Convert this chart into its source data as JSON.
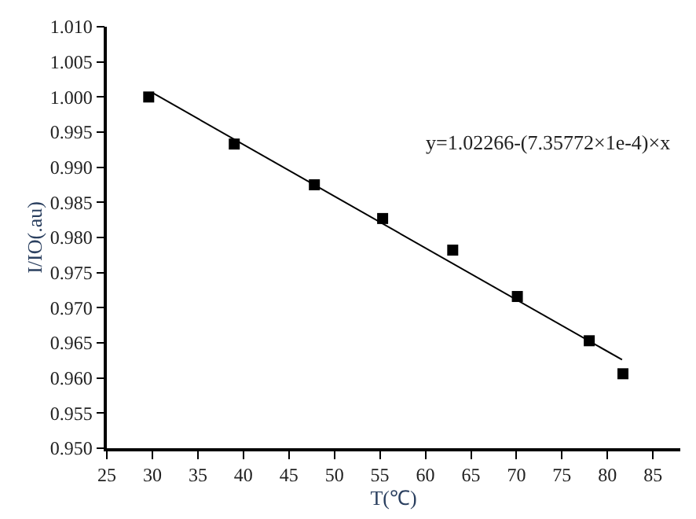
{
  "chart_data": {
    "type": "scatter",
    "xlabel": "T(℃)",
    "ylabel": "I/IO(.au)",
    "annotations": [
      "y=1.02266-(7.35772×1e-4)×x"
    ],
    "x": [
      29.6,
      39.0,
      47.8,
      55.3,
      63.0,
      70.1,
      78.0,
      81.7
    ],
    "series": [
      {
        "color": "#000000",
        "values": [
          1.0,
          0.9933,
          0.9875,
          0.9827,
          0.9782,
          0.9716,
          0.9653,
          0.9606
        ]
      },
      {
        "type": "line",
        "color": "#000000",
        "marker": "none",
        "x": [
          30,
          81.6
        ],
        "values": [
          1.0006,
          0.9626
        ]
      }
    ],
    "xlim": [
      25,
      88
    ],
    "xticks": [
      25,
      30,
      35,
      40,
      45,
      50,
      55,
      60,
      65,
      70,
      75,
      80,
      85
    ],
    "ylim": [
      0.95,
      1.01
    ],
    "yticks": [
      {
        "value": 0.95,
        "label": "0.950"
      },
      {
        "value": 0.955,
        "label": "0.955"
      },
      {
        "value": 0.96,
        "label": "0.960"
      },
      {
        "value": 0.965,
        "label": "0.965"
      },
      {
        "value": 0.97,
        "label": "0.970"
      },
      {
        "value": 0.975,
        "label": "0.975"
      },
      {
        "value": 0.98,
        "label": "0.980"
      },
      {
        "value": 0.985,
        "label": "0.985"
      },
      {
        "value": 0.99,
        "label": "0.990"
      },
      {
        "value": 0.995,
        "label": "0.995"
      },
      {
        "value": 1.0,
        "label": "1.000"
      },
      {
        "value": 1.005,
        "label": "1.005"
      },
      {
        "value": 1.01,
        "label": "1.010"
      }
    ],
    "marker": "square"
  }
}
